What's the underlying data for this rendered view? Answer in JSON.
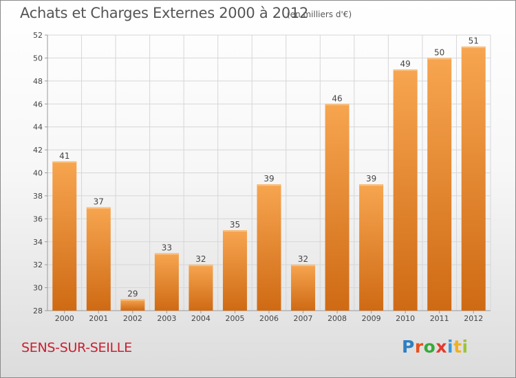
{
  "header": {
    "title": "Achats et Charges Externes 2000 à 2012",
    "subtitle": "(en milliers d'€)"
  },
  "footer": {
    "commune": "SENS-SUR-SEILLE",
    "logo_letters": [
      {
        "char": "P",
        "color": "#2e7fc4"
      },
      {
        "char": "r",
        "color": "#e8501e"
      },
      {
        "char": "o",
        "color": "#37a93c"
      },
      {
        "char": "x",
        "color": "#e53a2c"
      },
      {
        "char": "i",
        "color": "#3b9ad9"
      },
      {
        "char": "t",
        "color": "#f0b020"
      },
      {
        "char": "i",
        "color": "#9bc43a"
      }
    ]
  },
  "chart_data": {
    "type": "bar",
    "categories": [
      "2000",
      "2001",
      "2002",
      "2003",
      "2004",
      "2005",
      "2006",
      "2007",
      "2008",
      "2009",
      "2010",
      "2011",
      "2012"
    ],
    "values": [
      41,
      37,
      29,
      33,
      32,
      35,
      39,
      32,
      46,
      39,
      49,
      50,
      51
    ],
    "ylim": [
      28,
      52
    ],
    "yticks": [
      28,
      30,
      32,
      34,
      36,
      38,
      40,
      42,
      44,
      46,
      48,
      50,
      52
    ],
    "grid": true,
    "colors": {
      "bar_top": "#f7a550",
      "bar_bottom": "#cf6a14",
      "grid": "#d6d6d6",
      "axis": "#999999",
      "text": "#444444"
    }
  }
}
